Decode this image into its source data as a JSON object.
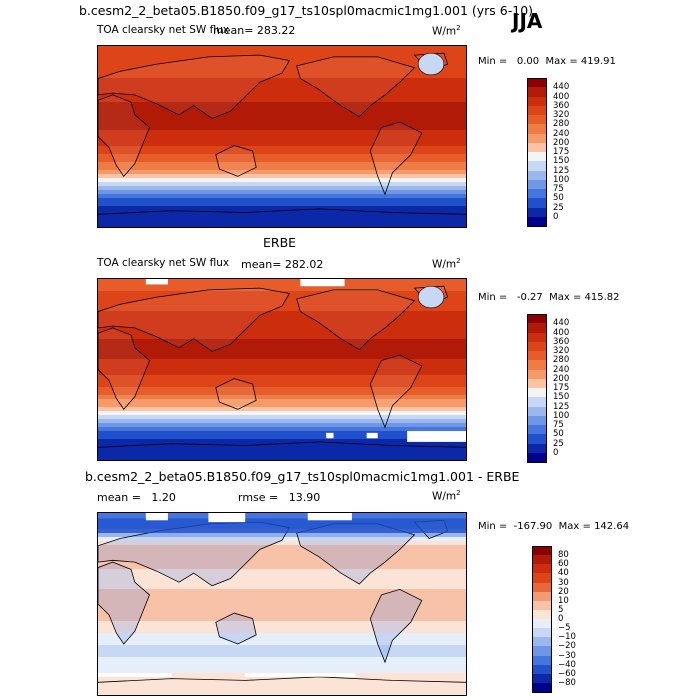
{
  "header": {
    "season": "JJA"
  },
  "panels": [
    {
      "title": "b.cesm2_2_beta05.B1850.f09_g17_ts10spl0macmic1mg1.001 (yrs 6-10)",
      "subtitle": "TOA clearsky net SW flux",
      "mean_label": "mean=",
      "mean_value": "283.22",
      "units_base": "W/m",
      "units_exp": "2",
      "min_label": "Min =",
      "min_value": "0.00",
      "max_label": "Max =",
      "max_value": "419.91",
      "colorbar": {
        "levels": [
          "440",
          "400",
          "360",
          "320",
          "280",
          "240",
          "200",
          "175",
          "150",
          "125",
          "100",
          "75",
          "50",
          "25",
          "0"
        ],
        "colors": [
          "#8b0000",
          "#b01a06",
          "#cc2e0d",
          "#dd4418",
          "#e65d2a",
          "#ef7b45",
          "#f59b6a",
          "#fbc3a3",
          "#f4f4f4",
          "#c6d8f4",
          "#9ab8ee",
          "#6f97e6",
          "#4476dd",
          "#2050cc",
          "#0a28a8",
          "#00008b"
        ]
      },
      "chart_data": {
        "type": "heatmap",
        "title": "b.cesm2_2_beta05.B1850.f09_g17_ts10spl0macmic1mg1.001 (yrs 6-10)",
        "subtitle": "TOA clearsky net SW flux",
        "field_mean": 283.22,
        "field_min": 0.0,
        "field_max": 419.91,
        "units": "W/m2",
        "lat": [
          80,
          60,
          45,
          30,
          15,
          0,
          -15,
          -30,
          -45,
          -60,
          -75
        ],
        "zonal_values": [
          320,
          360,
          390,
          405,
          410,
          390,
          330,
          250,
          150,
          60,
          5
        ]
      }
    },
    {
      "title": "ERBE",
      "subtitle": "TOA clearsky net SW flux",
      "mean_label": "mean=",
      "mean_value": "282.02",
      "units_base": "W/m",
      "units_exp": "2",
      "min_label": "Min =",
      "min_value": "-0.27",
      "max_label": "Max =",
      "max_value": "415.82",
      "colorbar": {
        "levels": [
          "440",
          "400",
          "360",
          "320",
          "280",
          "240",
          "200",
          "175",
          "150",
          "125",
          "100",
          "75",
          "50",
          "25",
          "0"
        ],
        "colors": [
          "#8b0000",
          "#b01a06",
          "#cc2e0d",
          "#dd4418",
          "#e65d2a",
          "#ef7b45",
          "#f59b6a",
          "#fbc3a3",
          "#f4f4f4",
          "#c6d8f4",
          "#9ab8ee",
          "#6f97e6",
          "#4476dd",
          "#2050cc",
          "#0a28a8",
          "#00008b"
        ]
      },
      "chart_data": {
        "type": "heatmap",
        "title": "ERBE",
        "subtitle": "TOA clearsky net SW flux",
        "field_mean": 282.02,
        "field_min": -0.27,
        "field_max": 415.82,
        "units": "W/m2",
        "lat": [
          80,
          60,
          45,
          30,
          15,
          0,
          -15,
          -30,
          -45,
          -60,
          -75
        ],
        "zonal_values": [
          315,
          355,
          385,
          400,
          405,
          385,
          325,
          245,
          150,
          60,
          5
        ]
      }
    },
    {
      "title": "b.cesm2_2_beta05.B1850.f09_g17_ts10spl0macmic1mg1.001 - ERBE",
      "mean_label": "mean =",
      "mean_value": "1.20",
      "rmse_label": "rmse =",
      "rmse_value": "13.90",
      "units_base": "W/m",
      "units_exp": "2",
      "min_label": "Min =",
      "min_value": "-167.90",
      "max_label": "Max =",
      "max_value": "142.64",
      "colorbar": {
        "levels": [
          "80",
          "60",
          "40",
          "30",
          "20",
          "10",
          "5",
          "0",
          "−5",
          "−10",
          "−20",
          "−30",
          "−40",
          "−60",
          "−80"
        ],
        "colors": [
          "#8b0000",
          "#b01a06",
          "#cc2e0d",
          "#dd4418",
          "#e8683a",
          "#f29a72",
          "#f8c2a8",
          "#fbe4d6",
          "#e6eefa",
          "#c6d8f4",
          "#9ab8ee",
          "#6f97e6",
          "#4476dd",
          "#2050cc",
          "#0a28a8",
          "#00008b"
        ]
      },
      "chart_data": {
        "type": "heatmap",
        "title": "b.cesm2_2_beta05.B1850.f09_g17_ts10spl0macmic1mg1.001 - ERBE",
        "field_mean": 1.2,
        "rmse": 13.9,
        "field_min": -167.9,
        "field_max": 142.64,
        "units": "W/m2",
        "lat": [
          80,
          60,
          45,
          30,
          15,
          0,
          -15,
          -30,
          -45,
          -60,
          -75
        ],
        "zonal_values": [
          -40,
          5,
          8,
          3,
          5,
          5,
          5,
          0,
          -8,
          -3,
          2
        ]
      }
    }
  ]
}
